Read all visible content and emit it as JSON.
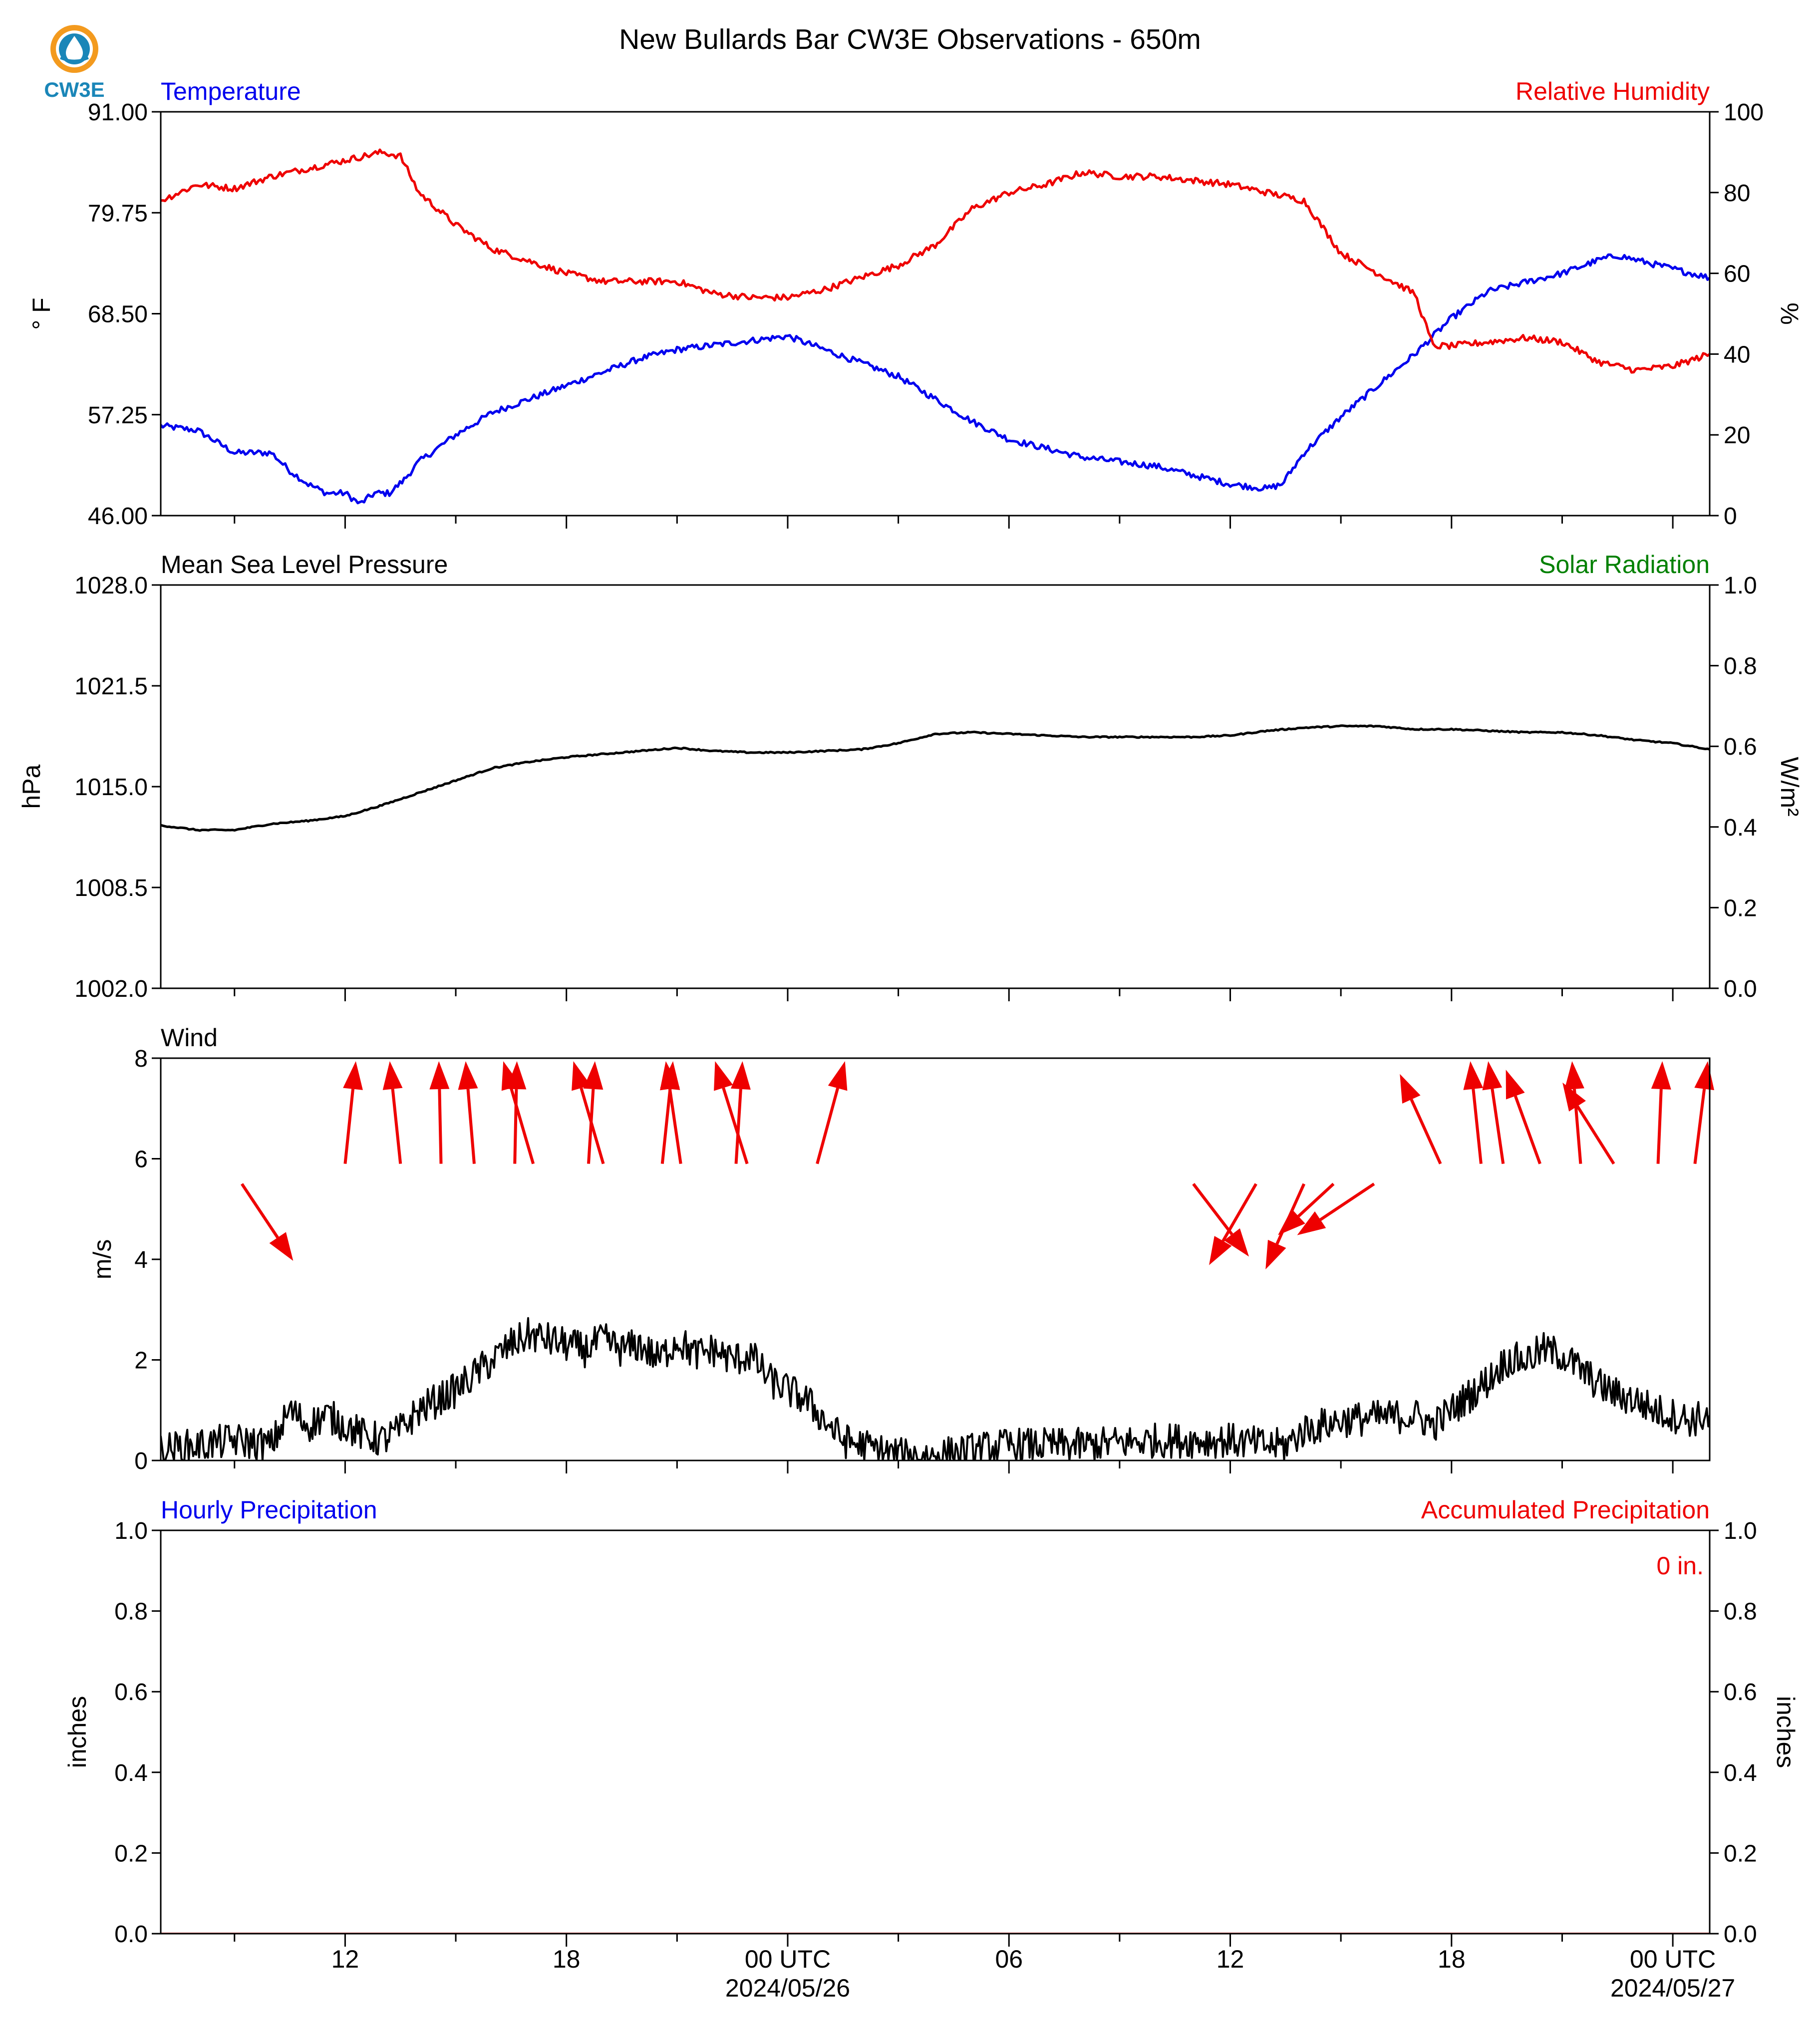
{
  "figure": {
    "title": "New Bullards Bar CW3E Observations - 650m",
    "logo_text": "CW3E",
    "x_ticks": [
      {
        "hour": 12,
        "label": "12"
      },
      {
        "hour": 18,
        "label": "18"
      },
      {
        "hour": 24,
        "label": "00 UTC",
        "date": "2024/05/26"
      },
      {
        "hour": 30,
        "label": "06"
      },
      {
        "hour": 36,
        "label": "12"
      },
      {
        "hour": 42,
        "label": "18"
      },
      {
        "hour": 48,
        "label": "00 UTC",
        "date": "2024/05/27"
      }
    ],
    "x_range_hours": [
      7,
      49
    ],
    "colors": {
      "temperature": "#0000ee",
      "humidity": "#ee0000",
      "solar": "#008000",
      "black": "#000000",
      "red": "#ee0000",
      "blue": "#0000ee"
    }
  },
  "chart_data": [
    {
      "type": "line",
      "title": "",
      "left_label": "Temperature",
      "right_label": "Relative Humidity",
      "ylabel_left": "° F",
      "ylabel_right": "%",
      "ylim_left": [
        46.0,
        91.0
      ],
      "yticks_left": [
        "46.00",
        "57.25",
        "68.50",
        "79.75",
        "91.00"
      ],
      "ylim_right": [
        0,
        100
      ],
      "yticks_right": [
        "0",
        "20",
        "40",
        "60",
        "80",
        "100"
      ],
      "series": [
        {
          "name": "Temperature",
          "axis": "left",
          "x": [
            7.0,
            8.0,
            9.0,
            10.0,
            10.5,
            11.0,
            11.5,
            12.0,
            12.4,
            12.8,
            13.2,
            13.6,
            14.0,
            14.5,
            15.0,
            16.0,
            17.0,
            18.0,
            19.0,
            20.0,
            21.0,
            22.0,
            23.0,
            24.0,
            25.0,
            26.0,
            27.0,
            28.0,
            29.0,
            30.0,
            31.0,
            32.0,
            33.0,
            34.0,
            35.0,
            36.0,
            37.0,
            37.4,
            38.0,
            39.0,
            40.0,
            41.0,
            42.0,
            43.0,
            44.0,
            45.0,
            46.0,
            46.5,
            47.0,
            48.0,
            49.0
          ],
          "values": [
            56.0,
            55.5,
            53.0,
            53.0,
            51.0,
            49.5,
            48.5,
            48.5,
            47.3,
            48.5,
            48.5,
            50.0,
            52.0,
            53.5,
            55.0,
            57.5,
            59.0,
            60.5,
            62.0,
            63.5,
            64.5,
            65.0,
            65.5,
            66.0,
            64.5,
            63.0,
            61.5,
            59.0,
            56.5,
            54.5,
            53.5,
            52.5,
            52.0,
            51.5,
            50.5,
            49.5,
            49.0,
            49.5,
            53.0,
            57.0,
            60.5,
            64.0,
            68.0,
            71.0,
            72.0,
            73.0,
            74.5,
            75.0,
            74.5,
            73.5,
            72.5
          ]
        },
        {
          "name": "Relative Humidity",
          "axis": "right",
          "x": [
            7.0,
            8.0,
            9.0,
            10.0,
            11.0,
            12.0,
            13.0,
            13.5,
            14.0,
            15.0,
            16.0,
            17.0,
            18.0,
            19.0,
            20.0,
            21.0,
            22.0,
            23.0,
            24.0,
            25.0,
            26.0,
            27.0,
            28.0,
            29.0,
            30.0,
            31.0,
            32.0,
            33.0,
            34.0,
            35.0,
            36.0,
            37.0,
            38.0,
            39.0,
            40.0,
            41.0,
            41.5,
            42.0,
            43.0,
            44.0,
            45.0,
            46.0,
            47.0,
            48.0,
            49.0
          ],
          "values": [
            78.0,
            82.0,
            81.0,
            84.0,
            86.0,
            88.0,
            90.0,
            89.0,
            80.0,
            72.0,
            66.0,
            63.0,
            60.0,
            58.0,
            58.0,
            58.0,
            55.0,
            54.0,
            54.0,
            56.0,
            59.0,
            62.0,
            67.0,
            76.0,
            80.0,
            82.0,
            85.0,
            84.0,
            84.0,
            83.0,
            82.0,
            80.0,
            78.0,
            65.0,
            60.0,
            55.0,
            42.0,
            42.0,
            43.0,
            44.0,
            43.0,
            38.0,
            36.0,
            37.0,
            40.0
          ]
        }
      ]
    },
    {
      "type": "line",
      "title": "",
      "left_label": "Mean Sea Level Pressure",
      "right_label": "Solar Radiation",
      "ylabel_left": "hPa",
      "ylabel_right": "W/m²",
      "ylim_left": [
        1002.0,
        1028.0
      ],
      "yticks_left": [
        "1002.0",
        "1008.5",
        "1015.0",
        "1021.5",
        "1028.0"
      ],
      "ylim_right": [
        0.0,
        1.0
      ],
      "yticks_right": [
        "0.0",
        "0.2",
        "0.4",
        "0.6",
        "0.8",
        "1.0"
      ],
      "series": [
        {
          "name": "Mean Sea Level Pressure",
          "axis": "left",
          "x": [
            7.0,
            8.0,
            9.0,
            10.0,
            11.0,
            12.0,
            13.0,
            14.0,
            15.0,
            16.0,
            17.0,
            18.0,
            19.0,
            20.0,
            21.0,
            22.0,
            23.0,
            24.0,
            25.0,
            26.0,
            27.0,
            28.0,
            29.0,
            30.0,
            31.0,
            32.0,
            33.0,
            34.0,
            35.0,
            36.0,
            37.0,
            38.0,
            39.0,
            40.0,
            41.0,
            42.0,
            43.0,
            44.0,
            45.0,
            46.0,
            47.0,
            48.0,
            49.0
          ],
          "values": [
            1012.5,
            1012.2,
            1012.2,
            1012.6,
            1012.8,
            1013.1,
            1013.8,
            1014.6,
            1015.4,
            1016.2,
            1016.6,
            1016.9,
            1017.1,
            1017.3,
            1017.5,
            1017.3,
            1017.2,
            1017.2,
            1017.3,
            1017.4,
            1017.8,
            1018.4,
            1018.5,
            1018.4,
            1018.3,
            1018.2,
            1018.2,
            1018.2,
            1018.2,
            1018.3,
            1018.6,
            1018.8,
            1018.9,
            1018.9,
            1018.7,
            1018.7,
            1018.6,
            1018.5,
            1018.5,
            1018.3,
            1018.0,
            1017.8,
            1017.4
          ]
        }
      ]
    },
    {
      "type": "line",
      "title": "",
      "left_label": "Wind",
      "ylabel_left": "m/s",
      "ylim_left": [
        0,
        8
      ],
      "yticks_left": [
        "0",
        "2",
        "4",
        "6",
        "8"
      ],
      "series": [
        {
          "name": "Wind speed",
          "axis": "left",
          "x": [
            7.0,
            8.0,
            9.0,
            10.0,
            10.5,
            11.0,
            11.5,
            12.0,
            12.5,
            13.0,
            13.5,
            14.0,
            15.0,
            16.0,
            16.5,
            17.0,
            17.5,
            18.0,
            18.5,
            19.0,
            19.5,
            20.0,
            20.5,
            21.0,
            21.5,
            22.0,
            22.5,
            23.0,
            23.5,
            24.0,
            24.5,
            25.0,
            25.5,
            26.0,
            26.5,
            27.0,
            28.0,
            29.0,
            30.0,
            31.0,
            32.0,
            33.0,
            34.0,
            35.0,
            36.0,
            37.0,
            37.5,
            38.0,
            39.0,
            40.0,
            41.0,
            41.5,
            42.0,
            42.5,
            43.0,
            43.5,
            44.0,
            44.5,
            45.0,
            45.5,
            46.0,
            46.5,
            47.0,
            47.5,
            48.0,
            48.5,
            49.0
          ],
          "values": [
            0.2,
            0.3,
            0.4,
            0.3,
            1.0,
            0.7,
            0.9,
            0.7,
            0.5,
            0.4,
            0.6,
            1.0,
            1.4,
            2.0,
            2.3,
            2.5,
            2.4,
            2.3,
            2.2,
            2.4,
            2.2,
            2.3,
            2.0,
            2.4,
            2.1,
            2.2,
            2.0,
            2.1,
            1.6,
            1.4,
            1.2,
            0.8,
            0.4,
            0.3,
            0.2,
            0.1,
            0.1,
            0.2,
            0.3,
            0.3,
            0.3,
            0.35,
            0.4,
            0.4,
            0.4,
            0.3,
            0.3,
            0.6,
            0.8,
            0.85,
            0.9,
            0.7,
            1.0,
            1.3,
            1.6,
            2.0,
            2.0,
            2.2,
            2.1,
            1.8,
            1.5,
            1.3,
            1.2,
            1.0,
            0.9,
            0.8,
            0.9
          ]
        }
      ],
      "wind_vectors": [
        {
          "x": 9.2,
          "u": 1.2,
          "v": -1.8
        },
        {
          "x": 12.0,
          "u": 0.25,
          "v": 2.4
        },
        {
          "x": 13.5,
          "u": -0.25,
          "v": 2.4
        },
        {
          "x": 14.6,
          "u": -0.05,
          "v": 2.4
        },
        {
          "x": 15.5,
          "u": -0.2,
          "v": 2.4
        },
        {
          "x": 16.6,
          "u": 0.05,
          "v": 2.4
        },
        {
          "x": 17.1,
          "u": -0.7,
          "v": 2.4
        },
        {
          "x": 18.6,
          "u": 0.15,
          "v": 2.4
        },
        {
          "x": 19.0,
          "u": -0.7,
          "v": 2.4
        },
        {
          "x": 20.6,
          "u": 0.25,
          "v": 2.4
        },
        {
          "x": 21.1,
          "u": -0.35,
          "v": 2.4
        },
        {
          "x": 22.6,
          "u": 0.15,
          "v": 2.4
        },
        {
          "x": 22.9,
          "u": -0.75,
          "v": 2.4
        },
        {
          "x": 24.8,
          "u": 0.65,
          "v": 2.4
        },
        {
          "x": 35.0,
          "u": 1.3,
          "v": -1.7
        },
        {
          "x": 36.7,
          "u": -1.1,
          "v": -1.9
        },
        {
          "x": 38.0,
          "u": -0.9,
          "v": -2.0
        },
        {
          "x": 38.8,
          "u": -1.3,
          "v": -1.2
        },
        {
          "x": 39.9,
          "u": -1.8,
          "v": -1.2
        },
        {
          "x": 41.7,
          "u": -0.95,
          "v": 2.1
        },
        {
          "x": 42.8,
          "u": -0.25,
          "v": 2.4
        },
        {
          "x": 43.4,
          "u": -0.35,
          "v": 2.4
        },
        {
          "x": 44.4,
          "u": -0.8,
          "v": 2.2
        },
        {
          "x": 45.5,
          "u": -0.2,
          "v": 2.4
        },
        {
          "x": 46.4,
          "u": -1.2,
          "v": 1.9
        },
        {
          "x": 47.6,
          "u": 0.1,
          "v": 2.4
        },
        {
          "x": 48.6,
          "u": 0.3,
          "v": 2.4
        }
      ]
    },
    {
      "type": "line",
      "title": "",
      "left_label": "Hourly Precipitation",
      "right_label": "Accumulated Precipitation",
      "ylabel_left": "inches",
      "ylabel_right": "inches",
      "ylim_left": [
        0.0,
        1.0
      ],
      "yticks_left": [
        "0.0",
        "0.2",
        "0.4",
        "0.6",
        "0.8",
        "1.0"
      ],
      "ylim_right": [
        0.0,
        1.0
      ],
      "yticks_right": [
        "0.0",
        "0.2",
        "0.4",
        "0.6",
        "0.8",
        "1.0"
      ],
      "annotation": "0 in.",
      "series": [
        {
          "name": "Hourly Precipitation",
          "axis": "left",
          "x": [
            7.0,
            49.0
          ],
          "values": [
            0.0,
            0.0
          ]
        },
        {
          "name": "Accumulated Precipitation",
          "axis": "right",
          "x": [
            7.0,
            49.0
          ],
          "values": [
            0.0,
            0.0
          ]
        }
      ]
    }
  ]
}
